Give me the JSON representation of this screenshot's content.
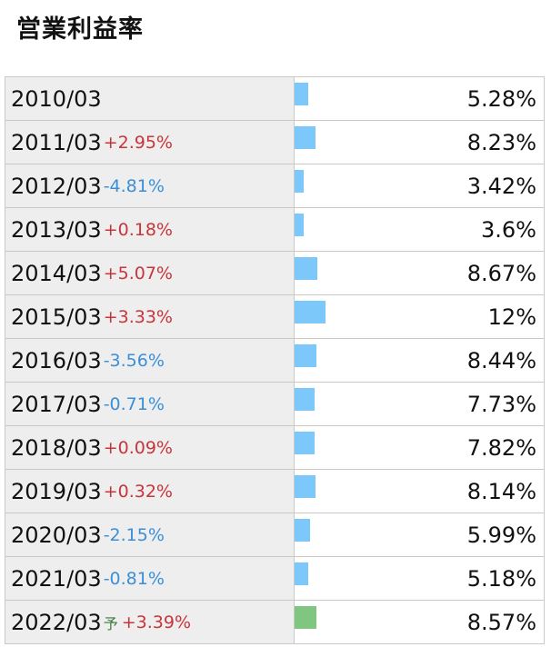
{
  "title": "営業利益率",
  "colors": {
    "bar": "#7cc8fb",
    "forecast_bar": "#80c680",
    "positive": "#c8353a",
    "negative": "#3a8fd8"
  },
  "chart_data": {
    "type": "table",
    "title": "営業利益率",
    "bar_max_value": 12,
    "rows": [
      {
        "period": "2010/03",
        "change": "",
        "value_label": "5.28%",
        "value": 5.28,
        "forecast": false
      },
      {
        "period": "2011/03",
        "change": "+2.95%",
        "value_label": "8.23%",
        "value": 8.23,
        "forecast": false
      },
      {
        "period": "2012/03",
        "change": "-4.81%",
        "value_label": "3.42%",
        "value": 3.42,
        "forecast": false
      },
      {
        "period": "2013/03",
        "change": "+0.18%",
        "value_label": "3.6%",
        "value": 3.6,
        "forecast": false
      },
      {
        "period": "2014/03",
        "change": "+5.07%",
        "value_label": "8.67%",
        "value": 8.67,
        "forecast": false
      },
      {
        "period": "2015/03",
        "change": "+3.33%",
        "value_label": "12%",
        "value": 12,
        "forecast": false
      },
      {
        "period": "2016/03",
        "change": "-3.56%",
        "value_label": "8.44%",
        "value": 8.44,
        "forecast": false
      },
      {
        "period": "2017/03",
        "change": "-0.71%",
        "value_label": "7.73%",
        "value": 7.73,
        "forecast": false
      },
      {
        "period": "2018/03",
        "change": "+0.09%",
        "value_label": "7.82%",
        "value": 7.82,
        "forecast": false
      },
      {
        "period": "2019/03",
        "change": "+0.32%",
        "value_label": "8.14%",
        "value": 8.14,
        "forecast": false
      },
      {
        "period": "2020/03",
        "change": "-2.15%",
        "value_label": "5.99%",
        "value": 5.99,
        "forecast": false
      },
      {
        "period": "2021/03",
        "change": "-0.81%",
        "value_label": "5.18%",
        "value": 5.18,
        "forecast": false
      },
      {
        "period": "2022/03",
        "forecast_mark": "予",
        "change": "+3.39%",
        "value_label": "8.57%",
        "value": 8.57,
        "forecast": true
      }
    ]
  }
}
